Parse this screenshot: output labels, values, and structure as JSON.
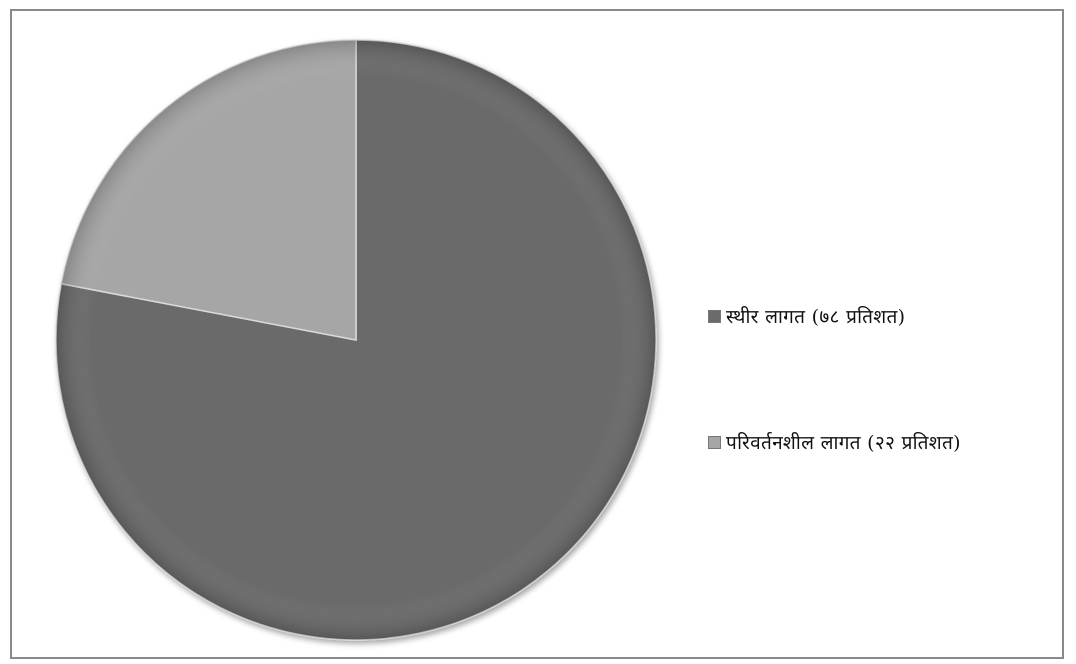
{
  "chart_data": {
    "type": "pie",
    "title": "",
    "categories": [
      "स्थीर लागत (७८ प्रतिशत)",
      "परिवर्तनशील लागत (२२ प्रतिशत)"
    ],
    "values": [
      78,
      22
    ],
    "colors": [
      "#6b6b6b",
      "#a6a6a6"
    ],
    "legend_position": "right",
    "start_angle_deg": 0
  }
}
